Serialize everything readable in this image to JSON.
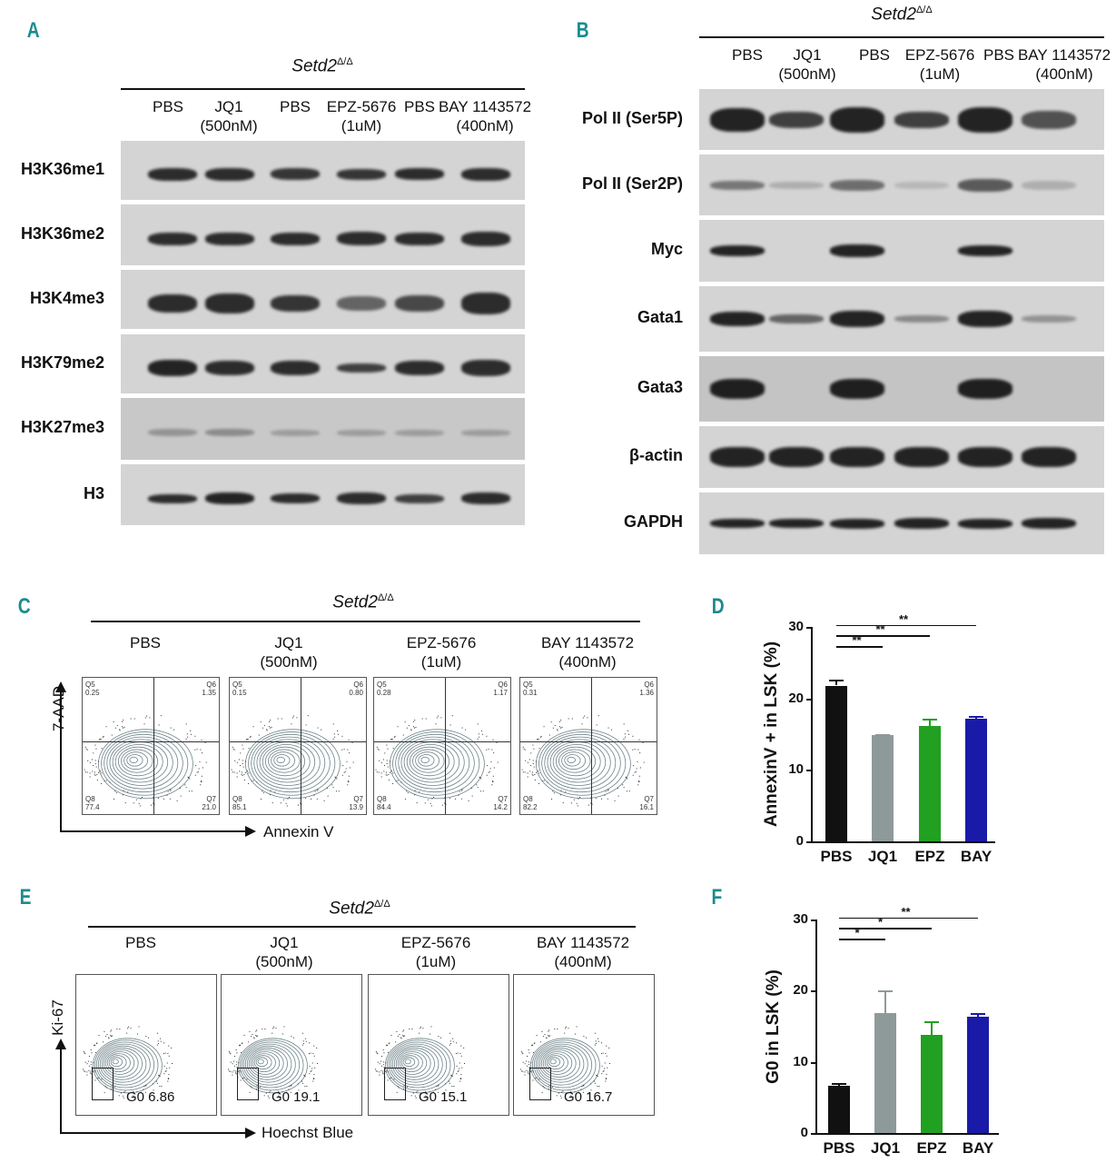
{
  "panels": {
    "a": {
      "letter": "A",
      "title": "Setd2",
      "sup": "Δ/Δ",
      "columns": [
        [
          "PBS",
          ""
        ],
        [
          "JQ1",
          "(500nM)"
        ],
        [
          "PBS",
          ""
        ],
        [
          "EPZ-5676",
          "(1uM)"
        ],
        [
          "PBS",
          ""
        ],
        [
          "BAY 1143572",
          "(400nM)"
        ]
      ],
      "rows": [
        "H3K36me1",
        "H3K36me2",
        "H3K4me3",
        "H3K79me2",
        "H3K27me3",
        "H3"
      ]
    },
    "b": {
      "letter": "B",
      "title": "Setd2",
      "sup": "Δ/Δ",
      "columns": [
        [
          "PBS",
          ""
        ],
        [
          "JQ1",
          "(500nM)"
        ],
        [
          "PBS",
          ""
        ],
        [
          "EPZ-5676",
          "(1uM)"
        ],
        [
          "PBS",
          ""
        ],
        [
          "BAY 1143572",
          "(400nM)"
        ]
      ],
      "rows": [
        "Pol II (Ser5P)",
        "Pol II (Ser2P)",
        "Myc",
        "Gata1",
        "Gata3",
        "β-actin",
        "GAPDH"
      ]
    },
    "c": {
      "letter": "C",
      "title": "Setd2",
      "sup": "Δ/Δ",
      "columns": [
        [
          "PBS",
          ""
        ],
        [
          "JQ1",
          "(500nM)"
        ],
        [
          "EPZ-5676",
          "(1uM)"
        ],
        [
          "BAY 1143572",
          "(400nM)"
        ]
      ],
      "y_axis": "7-AAD",
      "x_axis": "Annexin V",
      "plots": [
        {
          "Q5": [
            "Q5",
            "0.25"
          ],
          "Q6": [
            "Q6",
            "1.35"
          ],
          "Q7": [
            "Q7",
            "21.0"
          ],
          "Q8": [
            "Q8",
            "77.4"
          ]
        },
        {
          "Q5": [
            "Q5",
            "0.15"
          ],
          "Q6": [
            "Q6",
            "0.80"
          ],
          "Q7": [
            "Q7",
            "13.9"
          ],
          "Q8": [
            "Q8",
            "85.1"
          ]
        },
        {
          "Q5": [
            "Q5",
            "0.28"
          ],
          "Q6": [
            "Q6",
            "1.17"
          ],
          "Q7": [
            "Q7",
            "14.2"
          ],
          "Q8": [
            "Q8",
            "84.4"
          ]
        },
        {
          "Q5": [
            "Q5",
            "0.31"
          ],
          "Q6": [
            "Q6",
            "1.36"
          ],
          "Q7": [
            "Q7",
            "16.1"
          ],
          "Q8": [
            "Q8",
            "82.2"
          ]
        }
      ]
    },
    "d": {
      "letter": "D"
    },
    "e": {
      "letter": "E",
      "title": "Setd2",
      "sup": "Δ/Δ",
      "columns": [
        [
          "PBS",
          ""
        ],
        [
          "JQ1",
          "(500nM)"
        ],
        [
          "EPZ-5676",
          "(1uM)"
        ],
        [
          "BAY 1143572",
          "(400nM)"
        ]
      ],
      "y_axis": "Ki-67",
      "x_axis": "Hoechst Blue",
      "gates": [
        "G0  6.86",
        "G0  19.1",
        "G0  15.1",
        "G0  16.7"
      ]
    },
    "f": {
      "letter": "F"
    }
  },
  "chart_data": [
    {
      "type": "bar",
      "panel": "D",
      "categories": [
        "PBS",
        "JQ1",
        "EPZ",
        "BAY"
      ],
      "values": [
        21.8,
        14.9,
        16.2,
        17.1
      ],
      "errors": [
        0.8,
        0.1,
        1.0,
        0.4
      ],
      "colors": [
        "#111111",
        "#8e9a9a",
        "#22a022",
        "#1a1aa8"
      ],
      "ylabel": "AnnexinV + in LSK (%)",
      "ylim": [
        0,
        30
      ],
      "yticks": [
        "0",
        "10",
        "20",
        "30"
      ],
      "significance": [
        {
          "from": "PBS",
          "to": "JQ1",
          "label": "**"
        },
        {
          "from": "PBS",
          "to": "EPZ",
          "label": "**"
        },
        {
          "from": "PBS",
          "to": "BAY",
          "label": "**"
        }
      ]
    },
    {
      "type": "bar",
      "panel": "F",
      "categories": [
        "PBS",
        "JQ1",
        "EPZ",
        "BAY"
      ],
      "values": [
        6.6,
        16.8,
        13.8,
        16.4
      ],
      "errors": [
        0.4,
        3.3,
        1.9,
        0.4
      ],
      "colors": [
        "#111111",
        "#8e9a9a",
        "#22a022",
        "#1a1aa8"
      ],
      "ylabel": "G0 in LSK (%)",
      "ylim": [
        0,
        30
      ],
      "yticks": [
        "0",
        "10",
        "20",
        "30"
      ],
      "significance": [
        {
          "from": "PBS",
          "to": "JQ1",
          "label": "*"
        },
        {
          "from": "PBS",
          "to": "EPZ",
          "label": "*"
        },
        {
          "from": "PBS",
          "to": "BAY",
          "label": "**"
        }
      ]
    }
  ]
}
